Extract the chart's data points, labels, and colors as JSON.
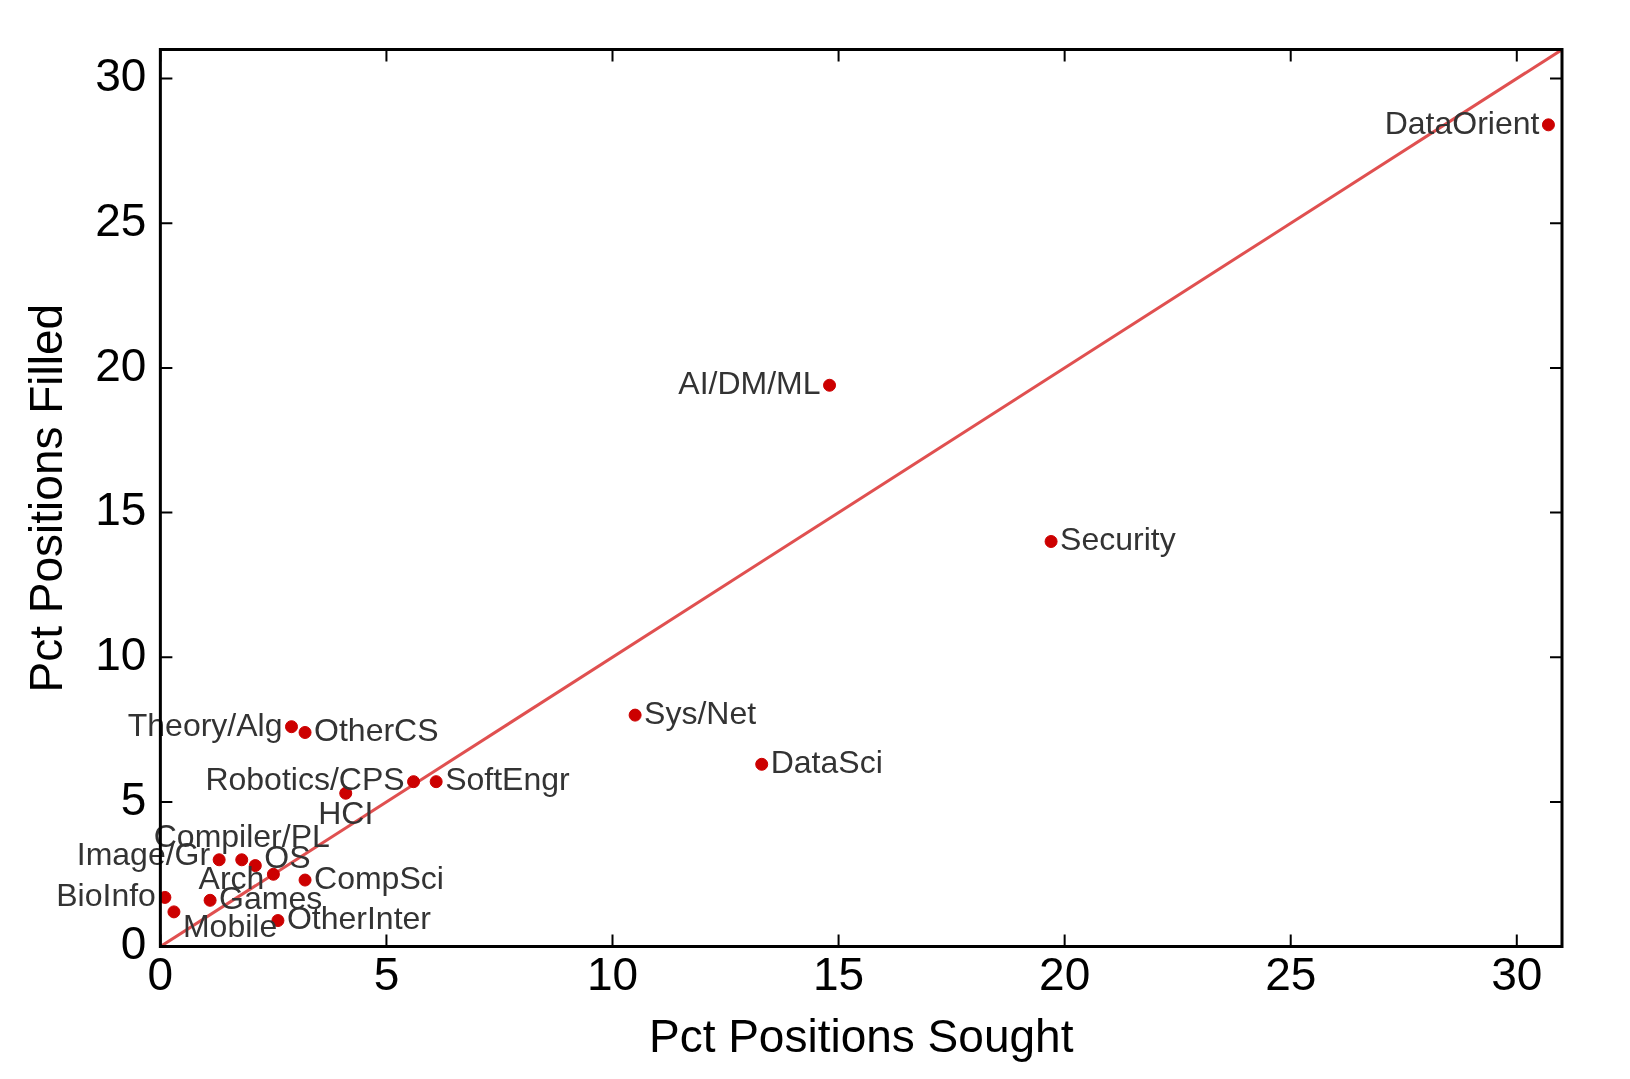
{
  "chart_data": {
    "type": "scatter",
    "xlabel": "Pct Positions Sought",
    "ylabel": "Pct Positions Filled",
    "xlim": [
      0,
      31
    ],
    "ylim": [
      0,
      31
    ],
    "xticks": [
      0,
      5,
      10,
      15,
      20,
      25,
      30
    ],
    "yticks": [
      0,
      5,
      10,
      15,
      20,
      25,
      30
    ],
    "grid": false,
    "legend": false,
    "marker": "circle",
    "series": [
      {
        "color": "#cc0000",
        "x": [
          30.7,
          14.8,
          19.7,
          10.5,
          13.3,
          6.1,
          5.6,
          4.1,
          2.9,
          3.2,
          1.3,
          1.8,
          2.1,
          2.5,
          3.2,
          1.1,
          0.1,
          0.3,
          2.6
        ],
        "values": [
          28.4,
          19.4,
          14.0,
          8.0,
          6.3,
          5.7,
          5.7,
          5.3,
          7.6,
          7.4,
          3.0,
          3.0,
          2.8,
          2.5,
          2.3,
          1.6,
          1.7,
          1.2,
          0.9
        ]
      },
      {
        "type": "line",
        "color": "#e05050",
        "x": [
          0,
          31
        ],
        "values": [
          0,
          31
        ],
        "marker": "none"
      }
    ],
    "annotations": [
      {
        "text": "DataOrient",
        "x": 30.7,
        "y": 28.4
      },
      {
        "text": "AI/DM/ML",
        "x": 14.8,
        "y": 19.4
      },
      {
        "text": "Security",
        "x": 19.7,
        "y": 14.0
      },
      {
        "text": "Sys/Net",
        "x": 10.5,
        "y": 8.0
      },
      {
        "text": "DataSci",
        "x": 13.3,
        "y": 6.3
      },
      {
        "text": "SoftEngr",
        "x": 6.1,
        "y": 5.7
      },
      {
        "text": "Robotics/CPS",
        "x": 5.6,
        "y": 5.7
      },
      {
        "text": "HCI",
        "x": 4.1,
        "y": 5.3
      },
      {
        "text": "Theory/Alg",
        "x": 2.9,
        "y": 7.6
      },
      {
        "text": "OtherCS",
        "x": 3.2,
        "y": 7.4
      },
      {
        "text": "Image/Gr",
        "x": 1.3,
        "y": 3.0
      },
      {
        "text": "Compiler/PL",
        "x": 1.8,
        "y": 3.0
      },
      {
        "text": "OS",
        "x": 2.1,
        "y": 2.8
      },
      {
        "text": "Arch",
        "x": 2.5,
        "y": 2.5
      },
      {
        "text": "CompSci",
        "x": 3.2,
        "y": 2.3
      },
      {
        "text": "Games",
        "x": 1.1,
        "y": 1.6
      },
      {
        "text": "BioInfo",
        "x": 0.1,
        "y": 1.7
      },
      {
        "text": "Mobile",
        "x": 0.3,
        "y": 1.2
      },
      {
        "text": "OtherInter",
        "x": 2.6,
        "y": 0.9
      }
    ]
  }
}
